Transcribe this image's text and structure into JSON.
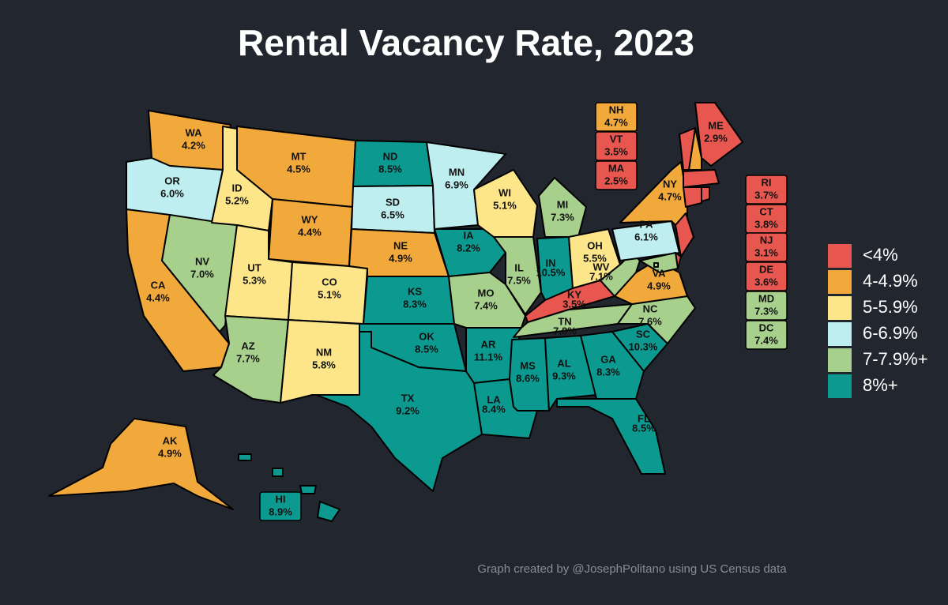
{
  "title": "Rental Vacancy Rate, 2023",
  "credit": "Graph created by @JosephPolitano using US Census data",
  "legend": [
    {
      "label": "<4%",
      "color": "#e8574f"
    },
    {
      "label": "4-4.9%",
      "color": "#f2a93b"
    },
    {
      "label": "5-5.9%",
      "color": "#fde58a"
    },
    {
      "label": "6-6.9%",
      "color": "#bfeef0"
    },
    {
      "label": "7-7.9%+",
      "color": "#a8d08d"
    },
    {
      "label": "8%+",
      "color": "#0c9a90"
    }
  ],
  "states": [
    {
      "abbr": "WA",
      "value": 4.2,
      "value_label": "4.2%",
      "color": "#f2a93b"
    },
    {
      "abbr": "OR",
      "value": 6.0,
      "value_label": "6.0%",
      "color": "#bfeef0"
    },
    {
      "abbr": "CA",
      "value": 4.4,
      "value_label": "4.4%",
      "color": "#f2a93b"
    },
    {
      "abbr": "NV",
      "value": 7.0,
      "value_label": "7.0%",
      "color": "#a8d08d"
    },
    {
      "abbr": "ID",
      "value": 5.2,
      "value_label": "5.2%",
      "color": "#fde58a"
    },
    {
      "abbr": "MT",
      "value": 4.5,
      "value_label": "4.5%",
      "color": "#f2a93b"
    },
    {
      "abbr": "WY",
      "value": 4.4,
      "value_label": "4.4%",
      "color": "#f2a93b"
    },
    {
      "abbr": "UT",
      "value": 5.3,
      "value_label": "5.3%",
      "color": "#fde58a"
    },
    {
      "abbr": "CO",
      "value": 5.1,
      "value_label": "5.1%",
      "color": "#fde58a"
    },
    {
      "abbr": "AZ",
      "value": 7.7,
      "value_label": "7.7%",
      "color": "#a8d08d"
    },
    {
      "abbr": "NM",
      "value": 5.8,
      "value_label": "5.8%",
      "color": "#fde58a"
    },
    {
      "abbr": "ND",
      "value": 8.5,
      "value_label": "8.5%",
      "color": "#0c9a90"
    },
    {
      "abbr": "SD",
      "value": 6.5,
      "value_label": "6.5%",
      "color": "#bfeef0"
    },
    {
      "abbr": "NE",
      "value": 4.9,
      "value_label": "4.9%",
      "color": "#f2a93b"
    },
    {
      "abbr": "KS",
      "value": 8.3,
      "value_label": "8.3%",
      "color": "#0c9a90"
    },
    {
      "abbr": "OK",
      "value": 8.5,
      "value_label": "8.5%",
      "color": "#0c9a90"
    },
    {
      "abbr": "TX",
      "value": 9.2,
      "value_label": "9.2%",
      "color": "#0c9a90"
    },
    {
      "abbr": "MN",
      "value": 6.9,
      "value_label": "6.9%",
      "color": "#bfeef0"
    },
    {
      "abbr": "IA",
      "value": 8.2,
      "value_label": "8.2%",
      "color": "#0c9a90"
    },
    {
      "abbr": "MO",
      "value": 7.4,
      "value_label": "7.4%",
      "color": "#a8d08d"
    },
    {
      "abbr": "AR",
      "value": 11.1,
      "value_label": "11.1%",
      "color": "#0c9a90"
    },
    {
      "abbr": "LA",
      "value": 8.4,
      "value_label": "8.4%",
      "color": "#0c9a90"
    },
    {
      "abbr": "WI",
      "value": 5.1,
      "value_label": "5.1%",
      "color": "#fde58a"
    },
    {
      "abbr": "IL",
      "value": 7.5,
      "value_label": "7.5%",
      "color": "#a8d08d"
    },
    {
      "abbr": "MI",
      "value": 7.3,
      "value_label": "7.3%",
      "color": "#a8d08d"
    },
    {
      "abbr": "IN",
      "value": 10.5,
      "value_label": "10.5%",
      "color": "#0c9a90"
    },
    {
      "abbr": "OH",
      "value": 5.5,
      "value_label": "5.5%",
      "color": "#fde58a"
    },
    {
      "abbr": "KY",
      "value": 3.5,
      "value_label": "3.5%",
      "color": "#e8574f"
    },
    {
      "abbr": "TN",
      "value": 7.8,
      "value_label": "7.8%",
      "color": "#a8d08d"
    },
    {
      "abbr": "MS",
      "value": 8.6,
      "value_label": "8.6%",
      "color": "#0c9a90"
    },
    {
      "abbr": "AL",
      "value": 9.3,
      "value_label": "9.3%",
      "color": "#0c9a90"
    },
    {
      "abbr": "GA",
      "value": 8.3,
      "value_label": "8.3%",
      "color": "#0c9a90"
    },
    {
      "abbr": "FL",
      "value": 8.5,
      "value_label": "8.5%",
      "color": "#0c9a90"
    },
    {
      "abbr": "SC",
      "value": 10.3,
      "value_label": "10.3%",
      "color": "#0c9a90"
    },
    {
      "abbr": "NC",
      "value": 7.6,
      "value_label": "7.6%",
      "color": "#a8d08d"
    },
    {
      "abbr": "VA",
      "value": 4.9,
      "value_label": "4.9%",
      "color": "#f2a93b"
    },
    {
      "abbr": "WV",
      "value": 7.1,
      "value_label": "7.1%",
      "color": "#a8d08d"
    },
    {
      "abbr": "PA",
      "value": 6.1,
      "value_label": "6.1%",
      "color": "#bfeef0"
    },
    {
      "abbr": "NY",
      "value": 4.7,
      "value_label": "4.7%",
      "color": "#f2a93b"
    },
    {
      "abbr": "ME",
      "value": 2.9,
      "value_label": "2.9%",
      "color": "#e8574f"
    },
    {
      "abbr": "NH",
      "value": 4.7,
      "value_label": "4.7%",
      "color": "#f2a93b"
    },
    {
      "abbr": "VT",
      "value": 3.5,
      "value_label": "3.5%",
      "color": "#e8574f"
    },
    {
      "abbr": "MA",
      "value": 2.5,
      "value_label": "2.5%",
      "color": "#e8574f"
    },
    {
      "abbr": "RI",
      "value": 3.7,
      "value_label": "3.7%",
      "color": "#e8574f"
    },
    {
      "abbr": "CT",
      "value": 3.8,
      "value_label": "3.8%",
      "color": "#e8574f"
    },
    {
      "abbr": "NJ",
      "value": 3.1,
      "value_label": "3.1%",
      "color": "#e8574f"
    },
    {
      "abbr": "DE",
      "value": 3.6,
      "value_label": "3.6%",
      "color": "#e8574f"
    },
    {
      "abbr": "MD",
      "value": 7.3,
      "value_label": "7.3%",
      "color": "#a8d08d"
    },
    {
      "abbr": "DC",
      "value": 7.4,
      "value_label": "7.4%",
      "color": "#a8d08d"
    },
    {
      "abbr": "AK",
      "value": 4.9,
      "value_label": "4.9%",
      "color": "#f2a93b"
    },
    {
      "abbr": "HI",
      "value": 8.9,
      "value_label": "8.9%",
      "color": "#0c9a90"
    }
  ]
}
